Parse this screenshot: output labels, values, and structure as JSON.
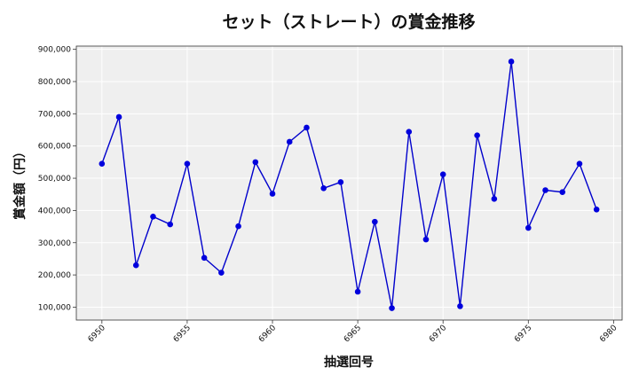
{
  "chart_data": {
    "type": "line",
    "title": "セット（ストレート）の賞金推移",
    "xlabel": "抽選回号",
    "ylabel": "賞金額（円）",
    "xlim": [
      6948.5,
      6980.5
    ],
    "ylim": [
      60000,
      910000
    ],
    "x_ticks": [
      6950,
      6955,
      6960,
      6965,
      6970,
      6975,
      6980
    ],
    "x_tick_labels": [
      "6950",
      "6955",
      "6960",
      "6965",
      "6970",
      "6975",
      "6980"
    ],
    "y_ticks": [
      100000,
      200000,
      300000,
      400000,
      500000,
      600000,
      700000,
      800000,
      900000
    ],
    "y_tick_labels": [
      "100,000",
      "200,000",
      "300,000",
      "400,000",
      "500,000",
      "600,000",
      "700,000",
      "800,000",
      "900,000"
    ],
    "grid": true,
    "colors": {
      "line": "#0000cc",
      "marker": "#0000dd",
      "plot_bg": "#efefef",
      "grid": "#ffffff"
    },
    "series": [
      {
        "x": [
          6950,
          6951,
          6952,
          6953,
          6954,
          6955,
          6956,
          6957,
          6958,
          6959,
          6960,
          6961,
          6962,
          6963,
          6964,
          6965,
          6966,
          6967,
          6968,
          6969,
          6970,
          6971,
          6972,
          6973,
          6974,
          6975,
          6976,
          6977,
          6978,
          6979
        ],
        "values": [
          545000,
          690000,
          230000,
          381000,
          357000,
          545000,
          253000,
          207000,
          351000,
          550000,
          452000,
          613000,
          657000,
          469000,
          488000,
          148000,
          365000,
          97000,
          644000,
          310000,
          512000,
          103000,
          633000,
          436000,
          862000,
          346000,
          463000,
          457000,
          545000,
          403000
        ]
      }
    ]
  }
}
